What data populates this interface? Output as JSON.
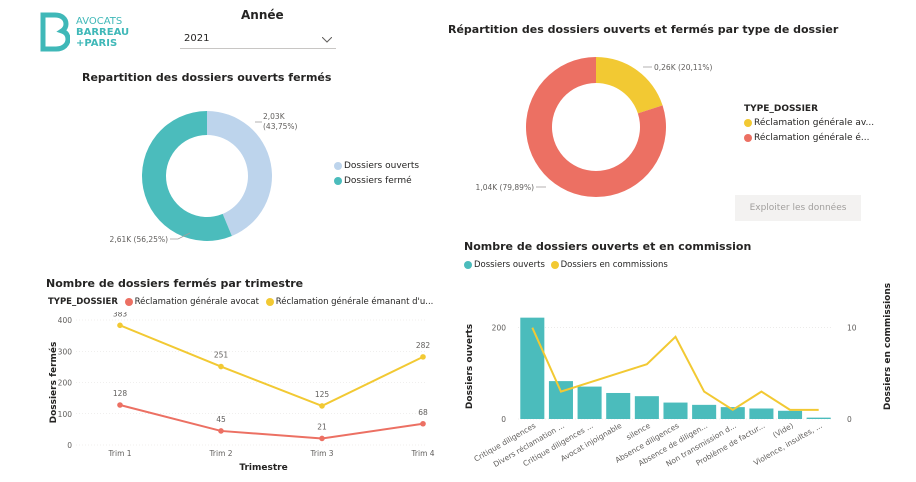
{
  "logo": {
    "line1": "AVOCATS",
    "line2": "BARREAU",
    "line3": "+PARIS",
    "color": "#3fb8b8"
  },
  "filter": {
    "title": "Année",
    "value": "2021"
  },
  "export_button": "Exploiter les données",
  "colors": {
    "teal": "#4bbcbc",
    "lightblue": "#bdd4ec",
    "coral": "#ec7063",
    "yellow": "#f2c933",
    "axis": "#c8c6c4"
  },
  "chart_data": [
    {
      "type": "pie",
      "title": "Repartition des dossiers ouverts fermés",
      "labels": [
        "Dossiers ouverts",
        "Dossiers fermé"
      ],
      "values": [
        2030,
        2610
      ],
      "data_labels": [
        "2,03K\n(43,75%)",
        "2,61K (56,25%)"
      ],
      "legend_position": "right"
    },
    {
      "type": "pie",
      "title": "Répartition des dossiers ouverts et fermés par type de dossier",
      "legend_title": "TYPE_DOSSIER",
      "labels": [
        "Réclamation générale av...",
        "Réclamation générale é..."
      ],
      "values": [
        260,
        1040
      ],
      "data_labels": [
        "0,26K (20,11%)",
        "1,04K (79,89%)"
      ],
      "legend_position": "right"
    },
    {
      "type": "line",
      "title": "Nombre de dossiers fermés par trimestre",
      "legend_title": "TYPE_DOSSIER",
      "categories": [
        "Trim 1",
        "Trim 2",
        "Trim 3",
        "Trim 4"
      ],
      "series": [
        {
          "name": "Réclamation générale avocat",
          "values": [
            128,
            45,
            21,
            68
          ]
        },
        {
          "name": "Réclamation générale émanant d'u...",
          "values": [
            383,
            251,
            125,
            282
          ]
        }
      ],
      "xlabel": "Trimestre",
      "ylabel": "Dossiers fermés",
      "yticks": [
        "0",
        "100",
        "200",
        "300",
        "400"
      ],
      "ylim": [
        0,
        400
      ]
    },
    {
      "type": "bar",
      "title": "Nombre de dossiers ouverts et en commission",
      "categories": [
        "Critique diligences",
        "Divers réclamation ...",
        "Critique diligences ...",
        "Avocat injoignable",
        "silence",
        "Absence diligences",
        "Absence de diligen...",
        "Non transmission d...",
        "Problème de factur...",
        "(Vide)",
        "Violence, insultes, ..."
      ],
      "series": [
        {
          "name": "Dossiers ouverts",
          "values": [
            222,
            83,
            71,
            57,
            50,
            36,
            31,
            26,
            23,
            18,
            3
          ]
        },
        {
          "name": "Dossiers en commissions",
          "values": [
            10,
            3,
            4,
            5,
            6,
            9,
            3,
            1,
            3,
            1,
            1
          ]
        }
      ],
      "ylabel": "Dossiers ouverts",
      "y2label": "Dossiers en commissions",
      "yticks": [
        "0",
        "200"
      ],
      "y2ticks": [
        "0",
        "10"
      ],
      "ylim": [
        0,
        230
      ],
      "y2lim": [
        0,
        11.5
      ],
      "legend_position": "top-left"
    }
  ]
}
